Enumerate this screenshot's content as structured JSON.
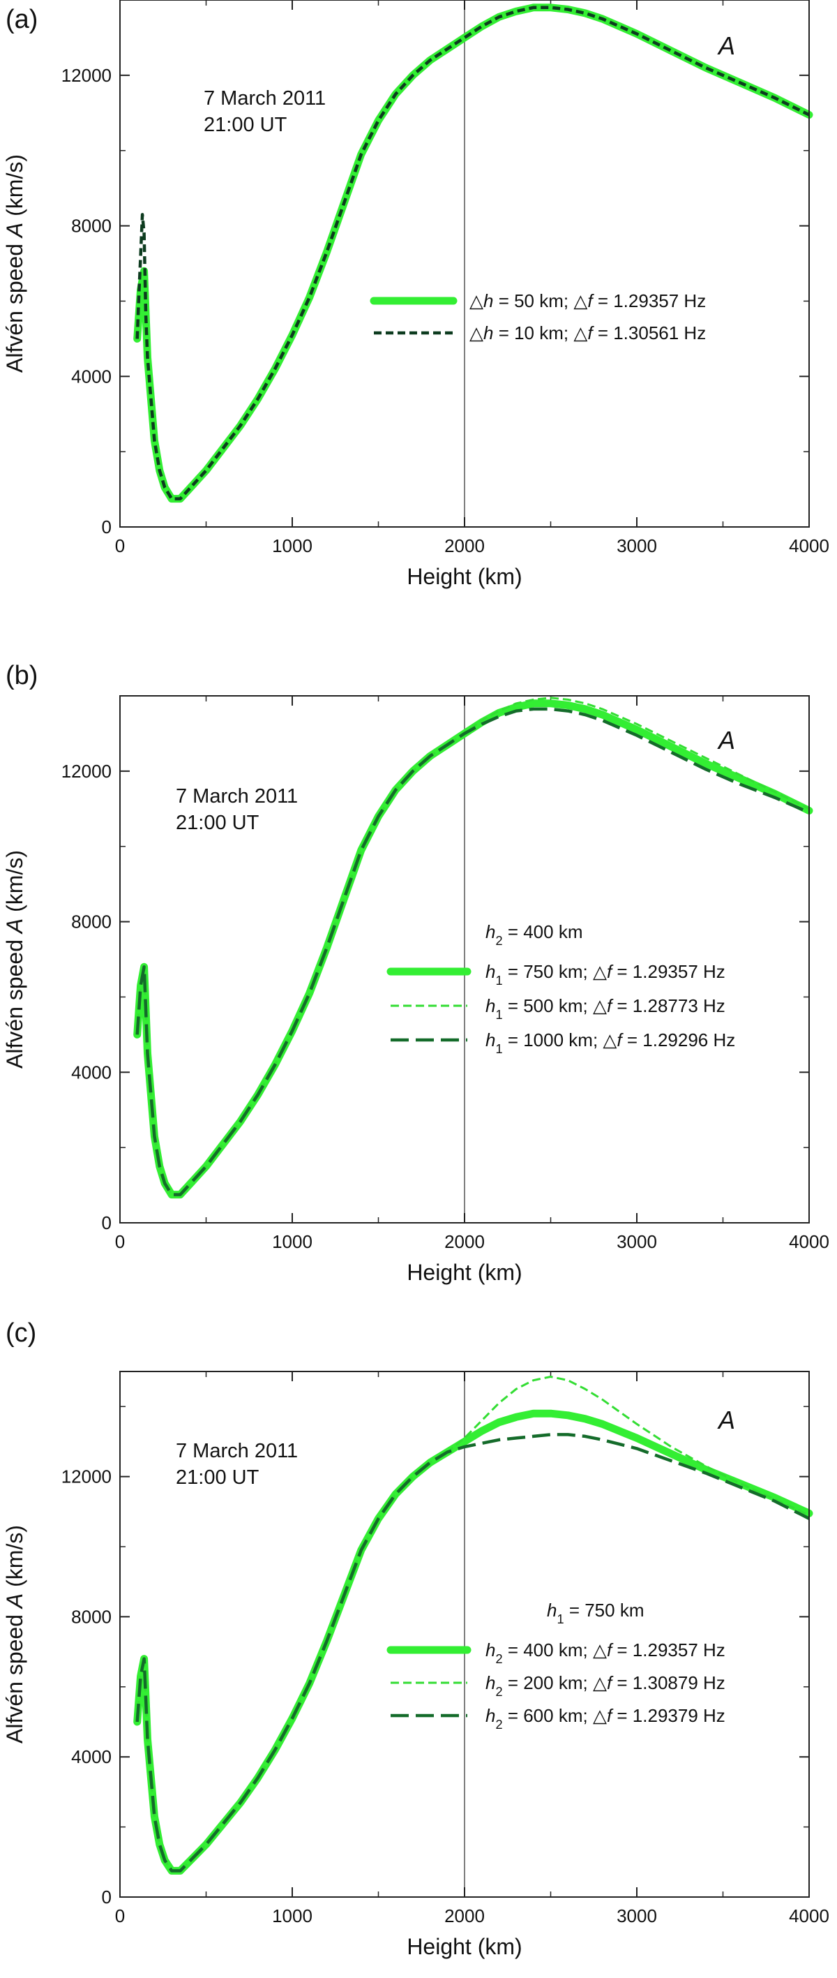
{
  "chart_data": [
    {
      "panel_label": "(a)",
      "type": "line",
      "xlabel": "Height (km)",
      "ylabel": "Alfvén speed A (km/s)",
      "xlim": [
        0,
        4000
      ],
      "ylim": [
        0,
        14000
      ],
      "xticks": [
        0,
        1000,
        2000,
        3000,
        4000
      ],
      "yticks": [
        0,
        4000,
        8000,
        12000
      ],
      "annotation": {
        "line1": "7 March 2011",
        "line2": "21:00 UT"
      },
      "curve_label": "A",
      "vertical_line_x": 2000,
      "legend_header": "",
      "series": [
        {
          "name": "△h = 50 km; △f = 1.29357 Hz",
          "color": "#33ee33",
          "style": "solid-thick",
          "x": [
            100,
            120,
            140,
            160,
            200,
            230,
            260,
            300,
            350,
            400,
            500,
            600,
            700,
            800,
            900,
            1000,
            1100,
            1200,
            1300,
            1400,
            1500,
            1600,
            1700,
            1800,
            1900,
            2000,
            2100,
            2200,
            2300,
            2400,
            2500,
            2600,
            2700,
            2800,
            3000,
            3200,
            3400,
            3600,
            3800,
            4000
          ],
          "y": [
            5000,
            6300,
            6800,
            4500,
            2300,
            1500,
            1050,
            750,
            750,
            1000,
            1500,
            2100,
            2700,
            3400,
            4200,
            5100,
            6100,
            7300,
            8600,
            9900,
            10800,
            11500,
            12000,
            12400,
            12700,
            13000,
            13300,
            13550,
            13700,
            13800,
            13800,
            13750,
            13650,
            13500,
            13100,
            12650,
            12200,
            11800,
            11400,
            10950
          ]
        },
        {
          "name": "△h = 10 km; △f = 1.30561 Hz",
          "color": "#0d3b1f",
          "style": "dashed-short",
          "x": [
            100,
            110,
            120,
            130,
            140,
            150,
            160,
            200,
            230,
            260,
            300,
            350,
            400,
            500,
            600,
            700,
            800,
            900,
            1000,
            1100,
            1200,
            1300,
            1400,
            1500,
            1600,
            1700,
            1800,
            1900,
            2000,
            2100,
            2200,
            2300,
            2400,
            2500,
            2600,
            2700,
            2800,
            3000,
            3200,
            3400,
            3600,
            3800,
            4000
          ],
          "y": [
            5000,
            6200,
            7200,
            8300,
            7800,
            5600,
            4500,
            2300,
            1500,
            1050,
            750,
            750,
            1000,
            1500,
            2100,
            2700,
            3400,
            4200,
            5100,
            6100,
            7300,
            8600,
            9900,
            10800,
            11500,
            12000,
            12400,
            12700,
            13000,
            13300,
            13550,
            13700,
            13800,
            13800,
            13750,
            13650,
            13500,
            13100,
            12650,
            12200,
            11800,
            11400,
            10950
          ]
        }
      ]
    },
    {
      "panel_label": "(b)",
      "type": "line",
      "xlabel": "Height (km)",
      "ylabel": "Alfvén speed A (km/s)",
      "xlim": [
        0,
        4000
      ],
      "ylim": [
        0,
        14000
      ],
      "xticks": [
        0,
        1000,
        2000,
        3000,
        4000
      ],
      "yticks": [
        0,
        4000,
        8000,
        12000
      ],
      "annotation": {
        "line1": "7 March 2011",
        "line2": "21:00 UT"
      },
      "curve_label": "A",
      "vertical_line_x": 2000,
      "legend_header": "h2 = 400 km",
      "series": [
        {
          "name": "h1 = 750 km; △f = 1.29357 Hz",
          "color": "#33ee33",
          "style": "solid-thick",
          "x": [
            100,
            120,
            140,
            160,
            200,
            230,
            260,
            300,
            350,
            400,
            500,
            600,
            700,
            800,
            900,
            1000,
            1100,
            1200,
            1300,
            1400,
            1500,
            1600,
            1700,
            1800,
            1900,
            2000,
            2100,
            2200,
            2300,
            2400,
            2500,
            2600,
            2700,
            2800,
            3000,
            3200,
            3400,
            3600,
            3800,
            4000
          ],
          "y": [
            5000,
            6300,
            6800,
            4500,
            2300,
            1500,
            1050,
            750,
            750,
            1000,
            1500,
            2100,
            2700,
            3400,
            4200,
            5100,
            6100,
            7300,
            8600,
            9900,
            10800,
            11500,
            12000,
            12400,
            12700,
            13000,
            13300,
            13550,
            13700,
            13800,
            13800,
            13750,
            13650,
            13500,
            13100,
            12650,
            12200,
            11800,
            11400,
            10950
          ]
        },
        {
          "name": "h1 = 500 km; △f = 1.28773 Hz",
          "color": "#33dd33",
          "style": "dashed-thin",
          "x": [
            100,
            120,
            140,
            160,
            200,
            230,
            260,
            300,
            350,
            400,
            500,
            600,
            700,
            800,
            900,
            1000,
            1100,
            1200,
            1300,
            1400,
            1500,
            1600,
            1700,
            1800,
            1900,
            2000,
            2100,
            2200,
            2300,
            2400,
            2500,
            2600,
            2700,
            2800,
            3000,
            3200,
            3400,
            3600,
            3800,
            4000
          ],
          "y": [
            5000,
            6300,
            6800,
            4500,
            2300,
            1500,
            1050,
            750,
            750,
            1000,
            1500,
            2100,
            2700,
            3400,
            4200,
            5100,
            6100,
            7300,
            8600,
            9900,
            10800,
            11500,
            12000,
            12400,
            12700,
            13000,
            13350,
            13600,
            13800,
            13900,
            13950,
            13900,
            13800,
            13650,
            13250,
            12800,
            12350,
            11900,
            11450,
            11000
          ]
        },
        {
          "name": "h1 = 1000 km; △f = 1.29296 Hz",
          "color": "#146b2a",
          "style": "dashed-long",
          "x": [
            100,
            120,
            140,
            160,
            200,
            230,
            260,
            300,
            350,
            400,
            500,
            600,
            700,
            800,
            900,
            1000,
            1100,
            1200,
            1300,
            1400,
            1500,
            1600,
            1700,
            1800,
            1900,
            2000,
            2100,
            2200,
            2300,
            2400,
            2500,
            2600,
            2700,
            2800,
            3000,
            3200,
            3400,
            3600,
            3800,
            4000
          ],
          "y": [
            5000,
            6300,
            6800,
            4500,
            2300,
            1500,
            1050,
            750,
            750,
            1000,
            1500,
            2100,
            2700,
            3400,
            4200,
            5100,
            6100,
            7300,
            8600,
            9900,
            10800,
            11500,
            12000,
            12400,
            12700,
            13000,
            13250,
            13450,
            13600,
            13650,
            13650,
            13600,
            13500,
            13350,
            12950,
            12500,
            12050,
            11650,
            11300,
            10900
          ]
        }
      ]
    },
    {
      "panel_label": "(c)",
      "type": "line",
      "xlabel": "Height (km)",
      "ylabel": "Alfvén speed A (km/s)",
      "xlim": [
        0,
        4000
      ],
      "ylim": [
        0,
        15000
      ],
      "xticks": [
        0,
        1000,
        2000,
        3000,
        4000
      ],
      "yticks": [
        0,
        4000,
        8000,
        12000
      ],
      "annotation": {
        "line1": "7 March 2011",
        "line2": "21:00 UT"
      },
      "curve_label": "A",
      "vertical_line_x": 2000,
      "legend_header": "h1 = 750 km",
      "series": [
        {
          "name": "h2 = 400 km; △f = 1.29357 Hz",
          "color": "#33ee33",
          "style": "solid-thick",
          "x": [
            100,
            120,
            140,
            160,
            200,
            230,
            260,
            300,
            350,
            400,
            500,
            600,
            700,
            800,
            900,
            1000,
            1100,
            1200,
            1300,
            1400,
            1500,
            1600,
            1700,
            1800,
            1900,
            2000,
            2100,
            2200,
            2300,
            2400,
            2500,
            2600,
            2700,
            2800,
            3000,
            3200,
            3400,
            3600,
            3800,
            4000
          ],
          "y": [
            5000,
            6300,
            6800,
            4500,
            2300,
            1500,
            1050,
            750,
            750,
            1000,
            1500,
            2100,
            2700,
            3400,
            4200,
            5100,
            6100,
            7300,
            8600,
            9900,
            10800,
            11500,
            12000,
            12400,
            12700,
            13000,
            13300,
            13550,
            13700,
            13800,
            13800,
            13750,
            13650,
            13500,
            13100,
            12650,
            12200,
            11800,
            11400,
            10950
          ]
        },
        {
          "name": "h2 = 200 km; △f = 1.30879 Hz",
          "color": "#33dd33",
          "style": "dashed-thin",
          "x": [
            100,
            120,
            140,
            160,
            200,
            230,
            260,
            300,
            350,
            400,
            500,
            600,
            700,
            800,
            900,
            1000,
            1100,
            1200,
            1300,
            1400,
            1500,
            1600,
            1700,
            1800,
            1900,
            2000,
            2100,
            2200,
            2300,
            2400,
            2500,
            2600,
            2700,
            2800,
            3000,
            3200,
            3400,
            3600,
            3800,
            4000
          ],
          "y": [
            5000,
            6300,
            6800,
            4500,
            2300,
            1500,
            1050,
            750,
            750,
            1000,
            1500,
            2100,
            2700,
            3400,
            4200,
            5100,
            6100,
            7300,
            8600,
            9900,
            10800,
            11500,
            12000,
            12400,
            12700,
            13100,
            13600,
            14100,
            14500,
            14750,
            14850,
            14750,
            14500,
            14200,
            13500,
            12850,
            12300,
            11800,
            11350,
            10900
          ]
        },
        {
          "name": "h2 = 600 km; △f = 1.29379 Hz",
          "color": "#146b2a",
          "style": "dashed-long",
          "x": [
            100,
            120,
            140,
            160,
            200,
            230,
            260,
            300,
            350,
            400,
            500,
            600,
            700,
            800,
            900,
            1000,
            1100,
            1200,
            1300,
            1400,
            1500,
            1600,
            1700,
            1800,
            1900,
            2000,
            2100,
            2200,
            2300,
            2400,
            2500,
            2600,
            2700,
            2800,
            3000,
            3200,
            3400,
            3600,
            3800,
            4000
          ],
          "y": [
            5000,
            6300,
            6800,
            4500,
            2300,
            1500,
            1050,
            750,
            750,
            1000,
            1500,
            2100,
            2700,
            3400,
            4200,
            5100,
            6100,
            7300,
            8600,
            9900,
            10800,
            11500,
            12000,
            12400,
            12700,
            12850,
            12950,
            13050,
            13100,
            13150,
            13200,
            13200,
            13150,
            13050,
            12800,
            12450,
            12100,
            11700,
            11300,
            10800
          ]
        }
      ]
    }
  ]
}
